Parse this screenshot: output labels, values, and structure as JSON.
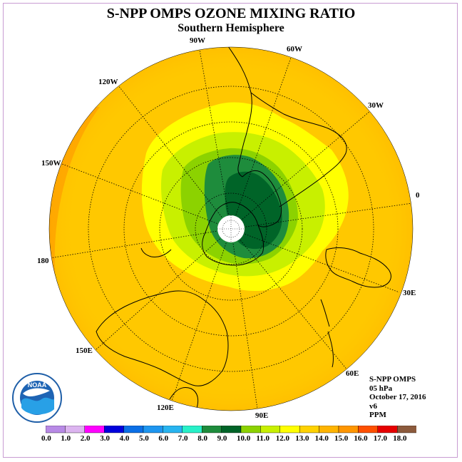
{
  "header": {
    "title": "S-NPP OMPS OZONE MIXING RATIO",
    "subtitle": "Southern Hemisphere"
  },
  "longitude_labels": [
    "90W",
    "60W",
    "30W",
    "0",
    "30E",
    "60E",
    "90E",
    "120E",
    "150E",
    "180",
    "150W",
    "120W"
  ],
  "info": {
    "instrument": "S-NPP OMPS",
    "level": "05 hPa",
    "date": "October 17, 2016",
    "version": "v6",
    "units": "PPM"
  },
  "logo": {
    "text": "NOAA",
    "icon": "noaa-logo-icon"
  },
  "colorbar": {
    "tick_labels": [
      "0.0",
      "1.0",
      "2.0",
      "3.0",
      "4.0",
      "5.0",
      "6.0",
      "7.0",
      "8.0",
      "9.0",
      "10.0",
      "11.0",
      "12.0",
      "13.0",
      "14.0",
      "15.0",
      "16.0",
      "17.0",
      "18.0"
    ],
    "colors": [
      "#b88ae6",
      "#dcb4f0",
      "#ff00ff",
      "#0000dc",
      "#0a6fe6",
      "#1e96f0",
      "#28b4f0",
      "#28f0c8",
      "#1e8c3c",
      "#006428",
      "#8cd200",
      "#c8f000",
      "#ffff00",
      "#ffd200",
      "#ffb400",
      "#ff9600",
      "#ff5000",
      "#e60000",
      "#8c5a3c"
    ]
  }
}
